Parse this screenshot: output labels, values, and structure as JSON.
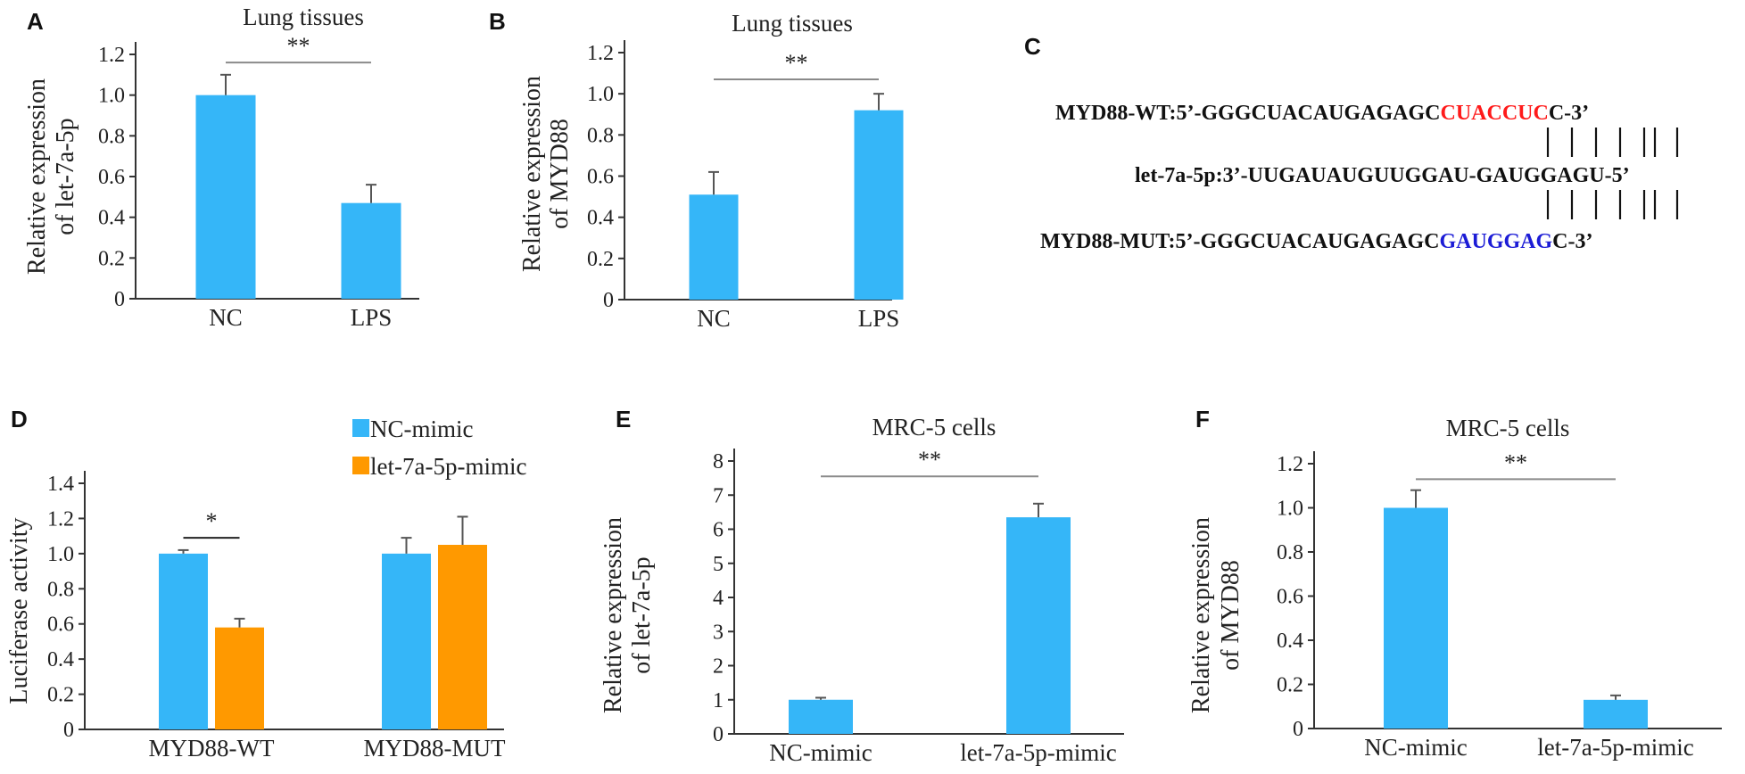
{
  "colors": {
    "blue": "#35b6f8",
    "orange": "#ff9900",
    "axis": "#333333",
    "sigline": "#8a8a8a",
    "red": "#ff1a1a",
    "navy": "#1c1cd6"
  },
  "panels": {
    "A": {
      "letter": "A"
    },
    "B": {
      "letter": "B"
    },
    "C": {
      "letter": "C",
      "wt": {
        "prefix": "MYD88-WT:5’-GGGCUACAUGAGAGC",
        "highlight": "CUACCUC",
        "suffix": "C-3’"
      },
      "mirna": {
        "text": "let-7a-5p:3’-UUGAUAUGUUGGAU-GAUGGAGU-5’"
      },
      "mut": {
        "prefix": "MYD88-MUT:5’-GGGCUACAUGAGAGC",
        "highlight": "GAUGGAG",
        "suffix": "C-3’"
      }
    },
    "D": {
      "letter": "D"
    },
    "E": {
      "letter": "E"
    },
    "F": {
      "letter": "F"
    }
  },
  "chart_data": [
    {
      "id": "A",
      "type": "bar",
      "title": "Lung tissues",
      "ylabel": [
        "Relative expression",
        "of let-7a-5p"
      ],
      "categories": [
        "NC",
        "LPS"
      ],
      "series": [
        {
          "values": [
            1.0,
            0.47
          ],
          "errors": [
            0.1,
            0.09
          ],
          "color": "#35b6f8"
        }
      ],
      "ylim": [
        0,
        1.2
      ],
      "yticks": [
        "0",
        "0.2",
        "0.4",
        "0.6",
        "0.8",
        "1.0",
        "1.2"
      ],
      "significance": [
        {
          "from": 0,
          "to": 1,
          "label": "**",
          "y": 1.16
        }
      ]
    },
    {
      "id": "B",
      "type": "bar",
      "title": "Lung tissues",
      "ylabel": [
        "Relative expression",
        "of MYD88"
      ],
      "categories": [
        "NC",
        "LPS"
      ],
      "series": [
        {
          "values": [
            0.51,
            0.92
          ],
          "errors": [
            0.11,
            0.08
          ],
          "color": "#35b6f8"
        }
      ],
      "ylim": [
        0,
        1.2
      ],
      "yticks": [
        "0",
        "0.2",
        "0.4",
        "0.6",
        "0.8",
        "1.0",
        "1.2"
      ],
      "significance": [
        {
          "from": 0,
          "to": 1,
          "label": "**",
          "y": 1.07
        }
      ]
    },
    {
      "id": "D",
      "type": "bar",
      "title": "",
      "ylabel": [
        "Luciferase activity"
      ],
      "categories": [
        "MYD88-WT",
        "MYD88-MUT"
      ],
      "series": [
        {
          "name": "NC-mimic",
          "values": [
            1.0,
            1.0
          ],
          "errors": [
            0.02,
            0.09
          ],
          "color": "#35b6f8"
        },
        {
          "name": "let-7a-5p-mimic",
          "values": [
            0.58,
            1.05
          ],
          "errors": [
            0.05,
            0.16
          ],
          "color": "#ff9900"
        }
      ],
      "ylim": [
        0,
        1.4
      ],
      "yticks": [
        "0",
        "0.2",
        "0.4",
        "0.6",
        "0.8",
        "1.0",
        "1.2",
        "1.4"
      ],
      "significance": [
        {
          "group": 0,
          "label": "*",
          "y": 1.09
        }
      ],
      "legend": "top-right"
    },
    {
      "id": "E",
      "type": "bar",
      "title": "MRC-5 cells",
      "ylabel": [
        "Relative expression",
        "of let-7a-5p"
      ],
      "categories": [
        "NC-mimic",
        "let-7a-5p-mimic"
      ],
      "series": [
        {
          "values": [
            1.0,
            6.35
          ],
          "errors": [
            0.06,
            0.4
          ],
          "color": "#35b6f8"
        }
      ],
      "ylim": [
        0,
        8
      ],
      "yticks": [
        "0",
        "1",
        "2",
        "3",
        "4",
        "5",
        "6",
        "7",
        "8"
      ],
      "significance": [
        {
          "from": 0,
          "to": 1,
          "label": "**",
          "y": 7.55
        }
      ]
    },
    {
      "id": "F",
      "type": "bar",
      "title": "MRC-5 cells",
      "ylabel": [
        "Relative expression",
        "of MYD88"
      ],
      "categories": [
        "NC-mimic",
        "let-7a-5p-mimic"
      ],
      "series": [
        {
          "values": [
            1.0,
            0.13
          ],
          "errors": [
            0.08,
            0.02
          ],
          "color": "#35b6f8"
        }
      ],
      "ylim": [
        0,
        1.2
      ],
      "yticks": [
        "0",
        "0.2",
        "0.4",
        "0.6",
        "0.8",
        "1.0",
        "1.2"
      ],
      "significance": [
        {
          "from": 0,
          "to": 1,
          "label": "**",
          "y": 1.13
        }
      ]
    }
  ]
}
